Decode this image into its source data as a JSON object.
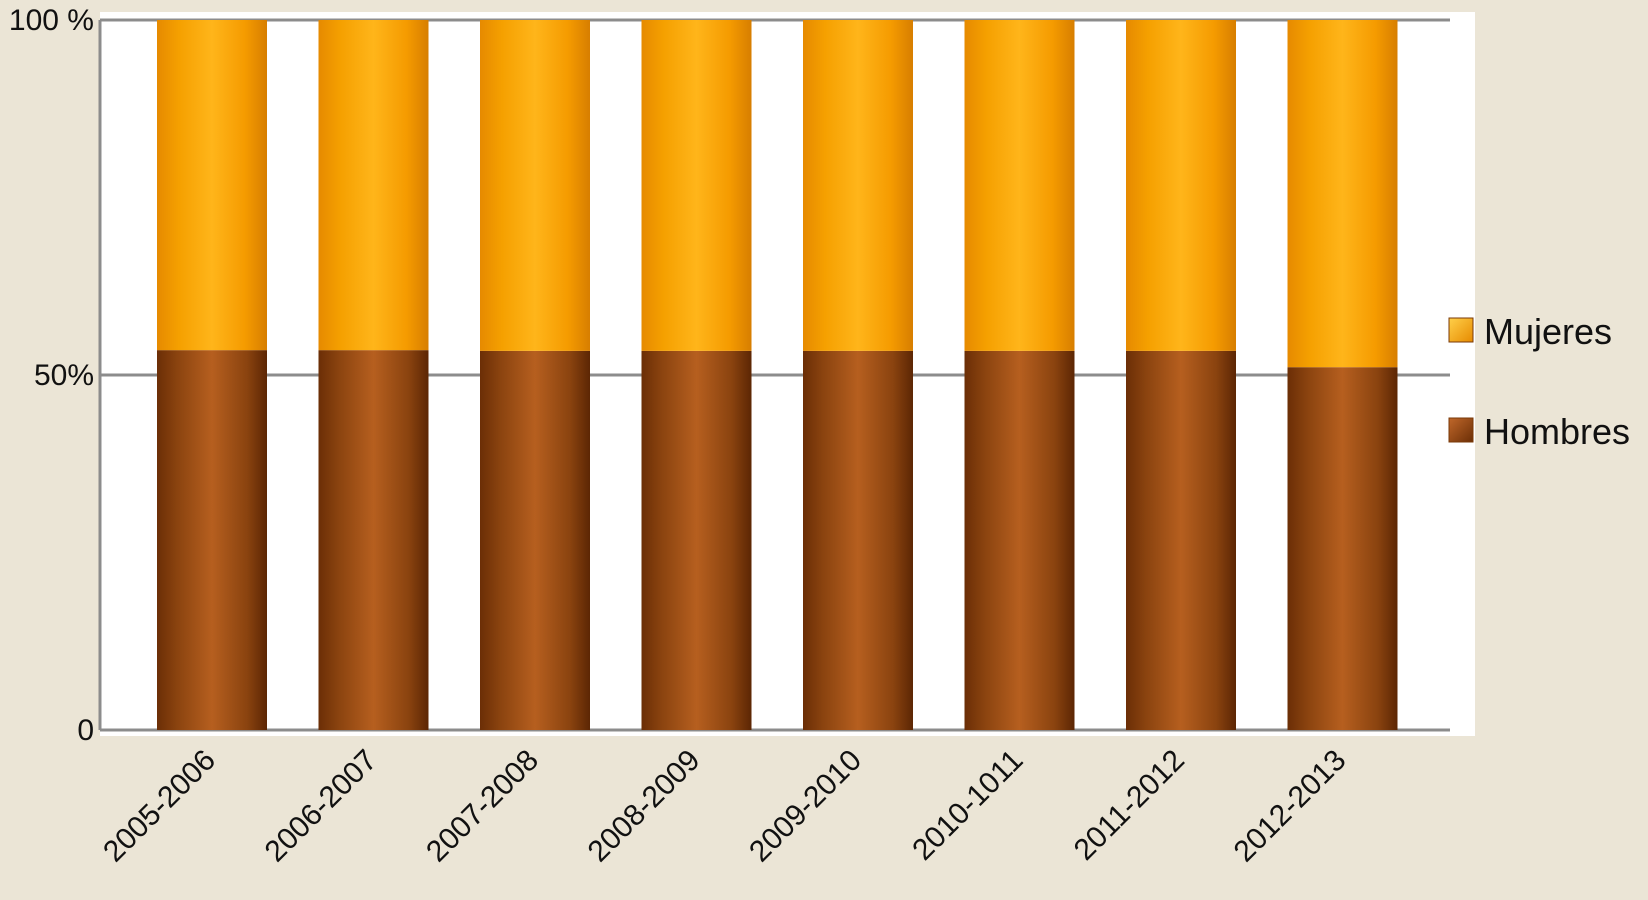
{
  "chart_data": {
    "type": "bar",
    "stacked": true,
    "normalized": true,
    "title": "",
    "xlabel": "",
    "ylabel": "",
    "ylim": [
      0,
      100
    ],
    "y_ticks": [
      {
        "value": 0,
        "label": "0"
      },
      {
        "value": 50,
        "label": "50%"
      },
      {
        "value": 100,
        "label": "100 %"
      }
    ],
    "categories": [
      "2005-2006",
      "2006-2007",
      "2007-2008",
      "2008-2009",
      "2009-2010",
      "2010-1011",
      "2011-2012",
      "2012-2013"
    ],
    "series": [
      {
        "name": "Hombres",
        "values": [
          53.5,
          53.5,
          53.4,
          53.4,
          53.4,
          53.4,
          53.4,
          51.1
        ],
        "color": "#a0521a"
      },
      {
        "name": "Mujeres",
        "values": [
          46.5,
          46.5,
          46.6,
          46.6,
          46.6,
          46.6,
          46.6,
          48.9
        ],
        "color": "#ffa500"
      }
    ],
    "legend": {
      "position": "right",
      "order": [
        "Mujeres",
        "Hombres"
      ]
    },
    "grid": true,
    "colors": {
      "background": "#ebe5d6",
      "plot_background": "#ffffff",
      "gridline": "#8c8c8c"
    }
  }
}
